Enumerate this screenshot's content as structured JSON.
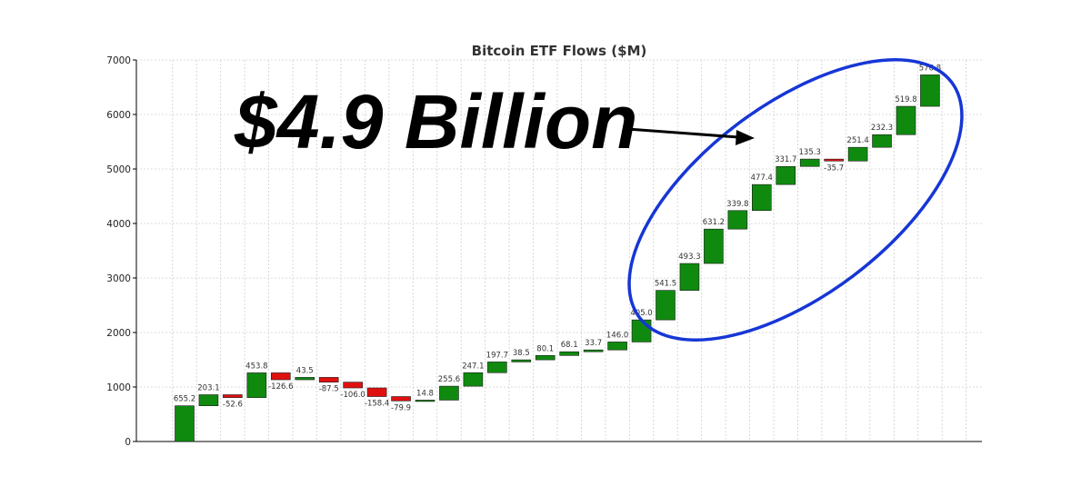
{
  "headline": "$4.9 Billion",
  "colors": {
    "positive": "#0f8a0f",
    "negative": "#e01010",
    "highlight": "#1636d6",
    "grid": "#cfcfcf"
  },
  "chart_data": {
    "type": "bar",
    "subtype": "waterfall",
    "title": "Bitcoin ETF Flows ($M)",
    "xlabel": "",
    "ylabel": "",
    "ylim": [
      0,
      7000
    ],
    "yticks": [
      "0",
      "1000",
      "2000",
      "3000",
      "4000",
      "5000",
      "6000",
      "7000"
    ],
    "grid": true,
    "values": [
      655.2,
      203.1,
      -52.6,
      453.8,
      -126.6,
      43.5,
      -87.5,
      -106.0,
      -158.4,
      -79.9,
      14.8,
      255.6,
      247.1,
      197.7,
      38.5,
      80.1,
      68.1,
      33.7,
      146.0,
      405.0,
      541.5,
      493.3,
      631.2,
      339.8,
      477.4,
      331.7,
      135.3,
      -35.7,
      251.4,
      232.3,
      519.8,
      576.8
    ],
    "labels": [
      "655.2",
      "203.1",
      "-52.6",
      "453.8",
      "-126.6",
      "43.5",
      "-87.5",
      "-106.0",
      "-158.4",
      "-79.9",
      "14.8",
      "255.6",
      "247.1",
      "197.7",
      "38.5",
      "80.1",
      "68.1",
      "33.7",
      "146.0",
      "405.0",
      "541.5",
      "493.3",
      "631.2",
      "339.8",
      "477.4",
      "331.7",
      "135.3",
      "-35.7",
      "251.4",
      "232.3",
      "519.8",
      "576.8"
    ]
  }
}
